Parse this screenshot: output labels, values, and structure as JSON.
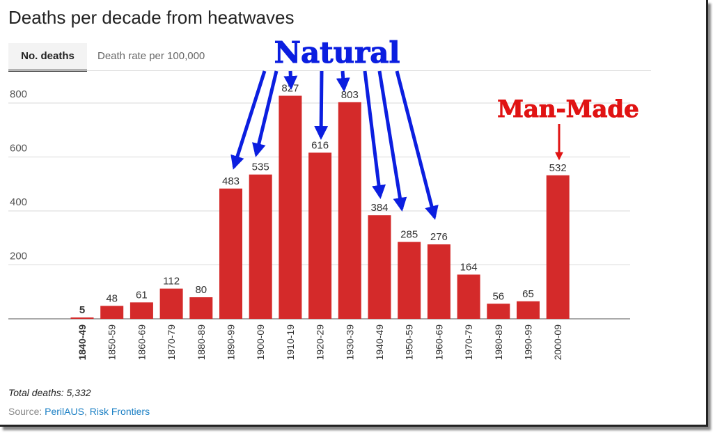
{
  "title": "Deaths per decade from heatwaves",
  "tabs": [
    {
      "label": "No. deaths",
      "active": true
    },
    {
      "label": "Death rate per 100,000",
      "active": false
    }
  ],
  "annotations": {
    "natural": "Natural",
    "man_made": "Man-Made",
    "natural_color": "#0b1ee0",
    "man_made_color": "#e01313"
  },
  "chart_data": {
    "type": "bar",
    "categories": [
      "1840-49",
      "1850-59",
      "1860-69",
      "1870-79",
      "1880-89",
      "1890-99",
      "1900-09",
      "1910-19",
      "1920-29",
      "1930-39",
      "1940-49",
      "1950-59",
      "1960-69",
      "1970-79",
      "1980-89",
      "1990-99",
      "2000-09"
    ],
    "values": [
      5,
      48,
      61,
      112,
      80,
      483,
      535,
      827,
      616,
      803,
      384,
      285,
      276,
      164,
      56,
      65,
      532
    ],
    "yticks": [
      200,
      400,
      600,
      800
    ],
    "ylim": [
      0,
      900
    ],
    "bar_color": "#d42a2a",
    "grid": true
  },
  "footer": {
    "total": "Total deaths: 5,332",
    "source_prefix": "Source: ",
    "source_link1": "PerilAUS",
    "source_sep": ", ",
    "source_link2": "Risk Frontiers"
  }
}
